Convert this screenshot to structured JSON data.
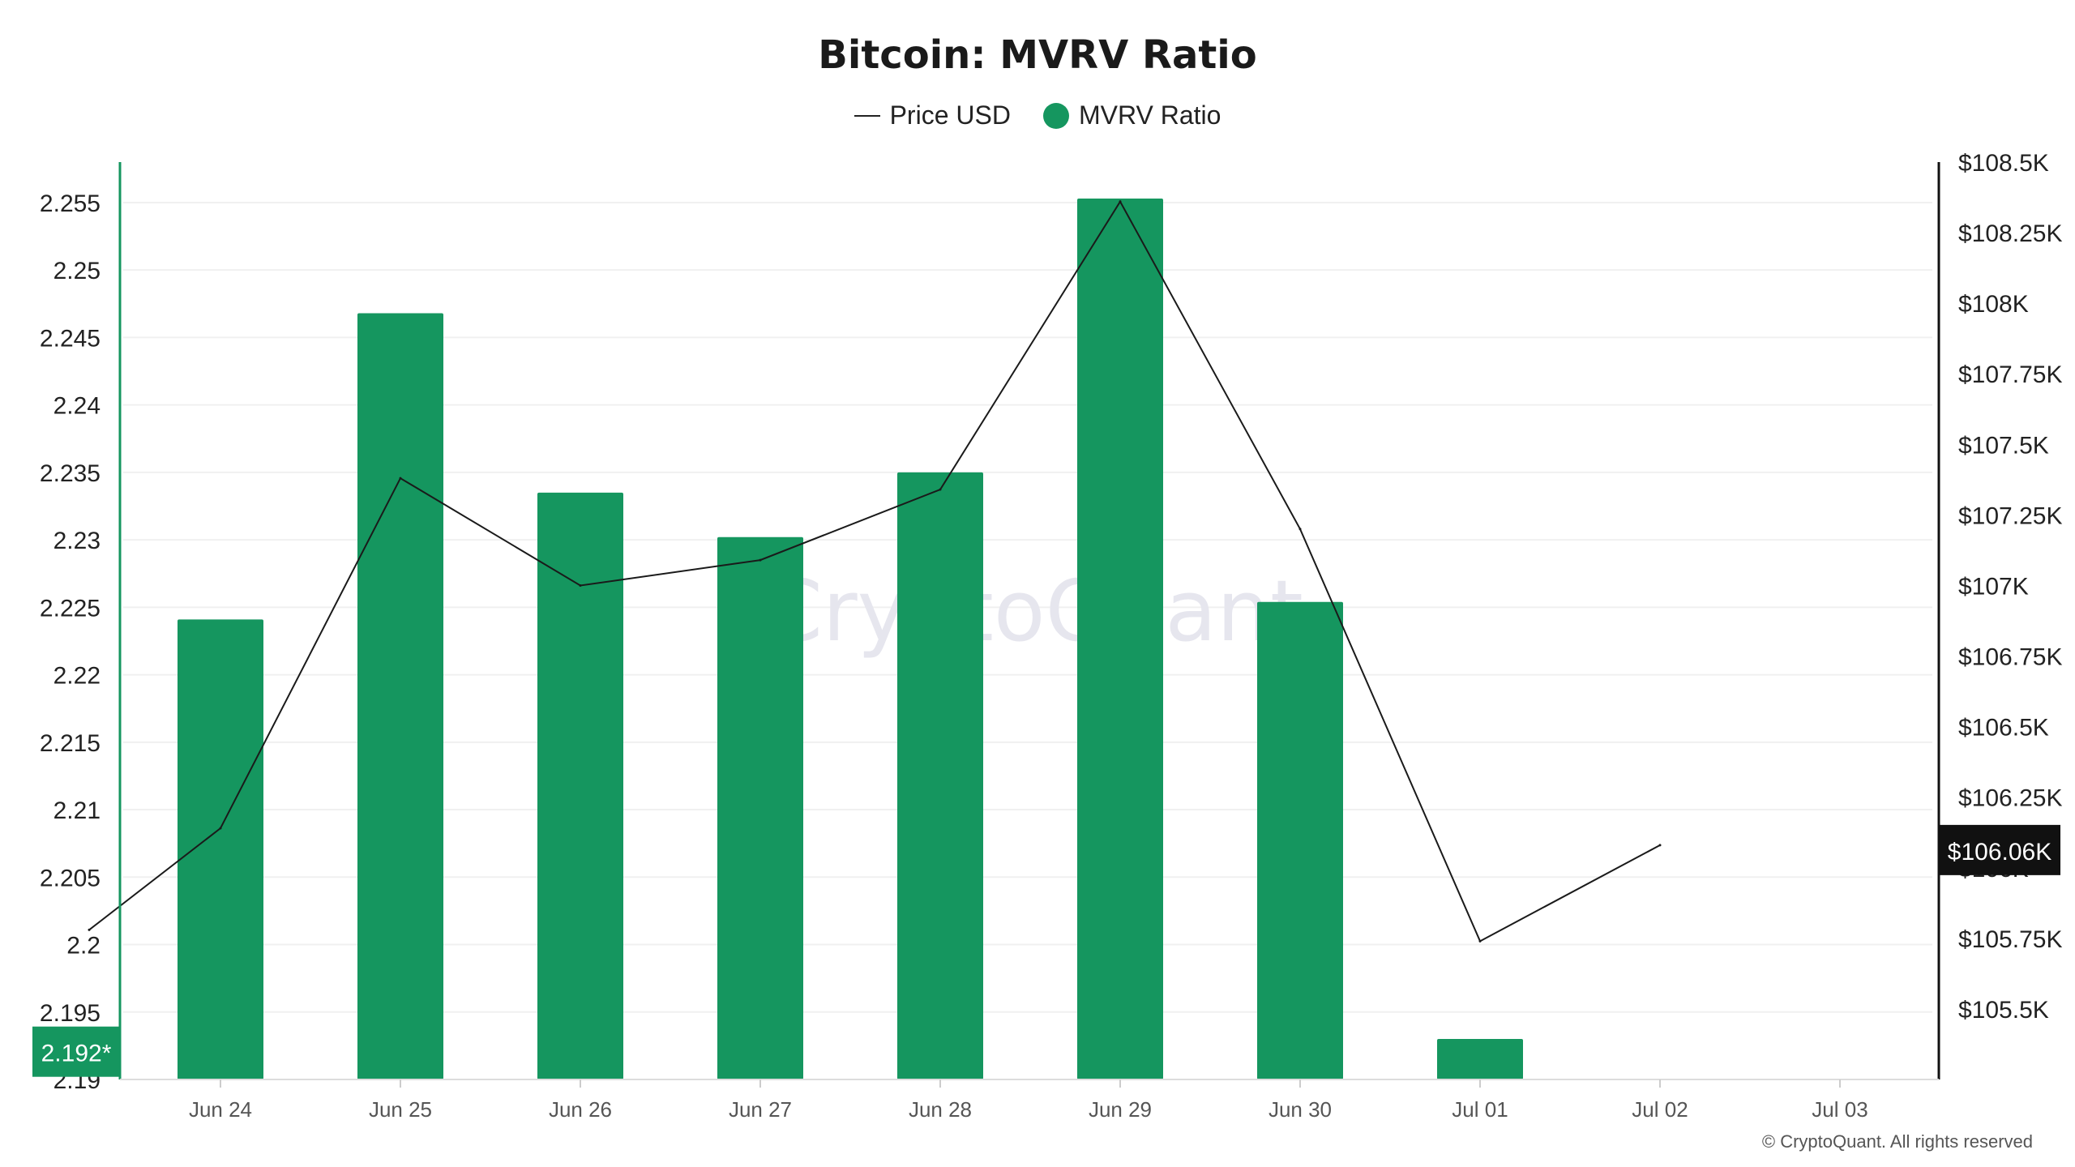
{
  "colors": {
    "bar": "#15965f",
    "line": "#1a1a1a",
    "axis_left": "#15965f",
    "axis_right": "#111111",
    "grid": "#f0f0f0"
  },
  "legend": {
    "price_label": "Price USD",
    "mvrv_label": "MVRV Ratio"
  },
  "watermark": "CryptoQuant",
  "footer": "© CryptoQuant. All rights reserved",
  "chart_data": {
    "type": "bar",
    "title": "Bitcoin: MVRV Ratio",
    "categories": [
      "Jun 24",
      "Jun 25",
      "Jun 26",
      "Jun 27",
      "Jun 28",
      "Jun 29",
      "Jun 30",
      "Jul 01",
      "Jul 02",
      "Jul 03"
    ],
    "series": [
      {
        "name": "MVRV Ratio",
        "type": "bar",
        "axis": "left",
        "values": [
          2.2241,
          2.2468,
          2.2335,
          2.2302,
          2.235,
          2.2553,
          2.2254,
          2.193,
          null,
          null
        ]
      },
      {
        "name": "Price USD",
        "type": "line",
        "axis": "right",
        "x": [
          "Jun 23",
          "Jun 24",
          "Jun 25",
          "Jun 26",
          "Jun 27",
          "Jun 28",
          "Jun 29",
          "Jun 30",
          "Jul 01",
          "Jul 02"
        ],
        "values": [
          105780,
          106140,
          107380,
          107000,
          107090,
          107340,
          108360,
          107200,
          105740,
          106080
        ]
      }
    ],
    "y_left": {
      "ylim": [
        2.19,
        2.258
      ],
      "ticks": [
        "2.19",
        "2.195",
        "2.2",
        "2.205",
        "2.21",
        "2.215",
        "2.22",
        "2.225",
        "2.23",
        "2.235",
        "2.24",
        "2.245",
        "2.25",
        "2.255"
      ],
      "current_label": "2.192*",
      "current_value": 2.192
    },
    "y_right": {
      "ylim": [
        105250,
        108500
      ],
      "ticks": [
        "$105.5K",
        "$105.75K",
        "$106K",
        "$106.25K",
        "$106.5K",
        "$106.75K",
        "$107K",
        "$107.25K",
        "$107.5K",
        "$107.75K",
        "$108K",
        "$108.25K",
        "$108.5K"
      ],
      "current_label": "$106.06K",
      "current_value": 106060
    },
    "grid": true,
    "legend_position": "top-center"
  }
}
